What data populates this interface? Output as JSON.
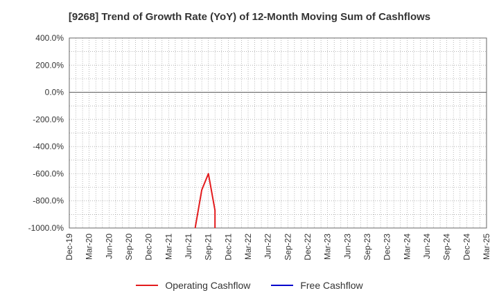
{
  "chart_data": {
    "type": "line",
    "title": "[9268]  Trend of Growth Rate (YoY) of 12-Month Moving Sum of Cashflows",
    "xlabel": "",
    "ylabel": "",
    "ylim": [
      -1000,
      400
    ],
    "y_ticks": [
      "400.0%",
      "200.0%",
      "0.0%",
      "-200.0%",
      "-400.0%",
      "-600.0%",
      "-800.0%",
      "-1000.0%"
    ],
    "y_tick_values": [
      400,
      200,
      0,
      -200,
      -400,
      -600,
      -800,
      -1000
    ],
    "x_ticks": [
      "Dec-19",
      "Mar-20",
      "Jun-20",
      "Sep-20",
      "Dec-20",
      "Mar-21",
      "Jun-21",
      "Sep-21",
      "Dec-21",
      "Mar-22",
      "Jun-22",
      "Sep-22",
      "Dec-22",
      "Mar-23",
      "Jun-23",
      "Sep-23",
      "Dec-23",
      "Mar-24",
      "Jun-24",
      "Sep-24",
      "Dec-24",
      "Mar-25"
    ],
    "grid": true,
    "legend_placement": "bottom-center",
    "series": [
      {
        "name": "Operating Cashflow",
        "color": "#e31a1c",
        "points": [
          {
            "x": "Jul-21",
            "y": -1000
          },
          {
            "x": "Aug-21",
            "y": -720
          },
          {
            "x": "Sep-21",
            "y": -600
          },
          {
            "x": "Oct-21",
            "y": -870
          },
          {
            "x": "Oct-21",
            "y": -1000
          }
        ]
      },
      {
        "name": "Free Cashflow",
        "color": "#0000cc",
        "points": []
      }
    ]
  }
}
